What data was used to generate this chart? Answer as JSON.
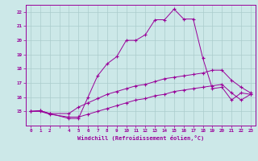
{
  "xlabel": "Windchill (Refroidissement éolien,°C)",
  "bg_color": "#cce8e8",
  "grid_color": "#aacccc",
  "line_color": "#990099",
  "xlim": [
    -0.5,
    23.5
  ],
  "ylim": [
    14.0,
    22.5
  ],
  "xticks": [
    0,
    1,
    2,
    3,
    4,
    5,
    6,
    7,
    8,
    9,
    10,
    11,
    12,
    13,
    14,
    15,
    16,
    17,
    18,
    19,
    20,
    21,
    22,
    23
  ],
  "xtick_labels": [
    "0",
    "1",
    "2",
    "",
    "4",
    "5",
    "6",
    "7",
    "8",
    "9",
    "10",
    "11",
    "12",
    "13",
    "14",
    "15",
    "16",
    "17",
    "18",
    "19",
    "20",
    "21",
    "22",
    "23"
  ],
  "yticks": [
    15,
    16,
    17,
    18,
    19,
    20,
    21,
    22
  ],
  "ytick_labels": [
    "15",
    "16",
    "17",
    "18",
    "19",
    "20",
    "21",
    "22"
  ],
  "line1_x": [
    0,
    1,
    2,
    4,
    5,
    6,
    7,
    8,
    9,
    10,
    11,
    12,
    13,
    14,
    15,
    16,
    17,
    18,
    19,
    20,
    21,
    22,
    23
  ],
  "line1_y": [
    15.0,
    15.05,
    14.85,
    14.5,
    14.5,
    16.0,
    17.5,
    18.35,
    18.85,
    20.0,
    20.0,
    20.4,
    21.45,
    21.45,
    22.2,
    21.5,
    21.5,
    18.75,
    16.6,
    16.7,
    15.8,
    16.3,
    16.2
  ],
  "line2_x": [
    0,
    1,
    2,
    4,
    5,
    6,
    7,
    8,
    9,
    10,
    11,
    12,
    13,
    14,
    15,
    16,
    17,
    18,
    19,
    20,
    21,
    22,
    23
  ],
  "line2_y": [
    15.0,
    15.05,
    14.85,
    14.85,
    15.3,
    15.6,
    15.9,
    16.2,
    16.4,
    16.6,
    16.8,
    16.9,
    17.1,
    17.3,
    17.4,
    17.5,
    17.6,
    17.7,
    17.9,
    17.9,
    17.2,
    16.7,
    16.3
  ],
  "line3_x": [
    0,
    1,
    2,
    4,
    5,
    6,
    7,
    8,
    9,
    10,
    11,
    12,
    13,
    14,
    15,
    16,
    17,
    18,
    19,
    20,
    21,
    22,
    23
  ],
  "line3_y": [
    15.0,
    15.0,
    14.8,
    14.6,
    14.6,
    14.8,
    15.0,
    15.2,
    15.4,
    15.6,
    15.8,
    15.9,
    16.1,
    16.2,
    16.4,
    16.5,
    16.6,
    16.7,
    16.8,
    16.9,
    16.3,
    15.8,
    16.2
  ]
}
